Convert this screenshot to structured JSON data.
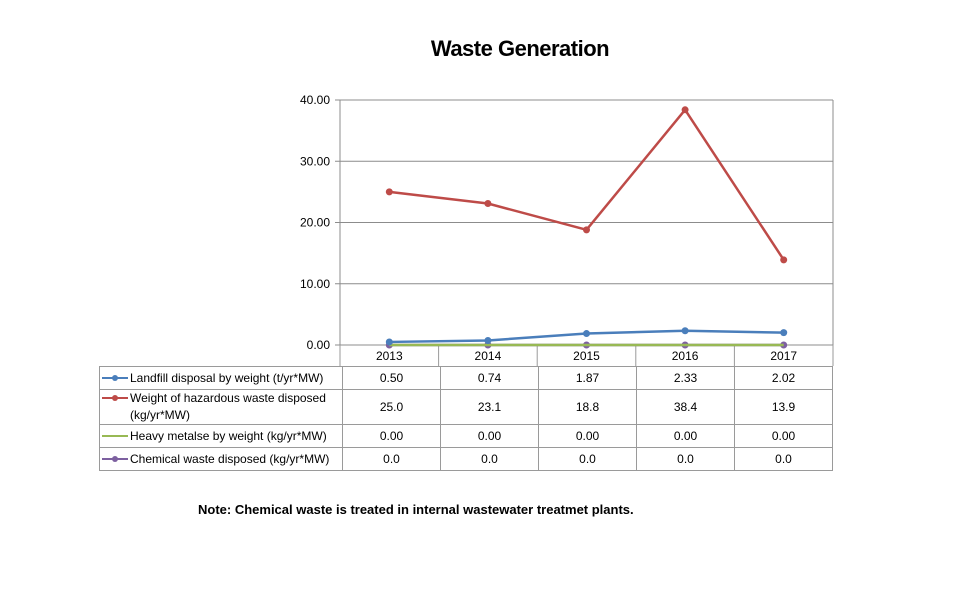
{
  "chart_data": {
    "type": "line",
    "title": "Waste Generation",
    "categories": [
      "2013",
      "2014",
      "2015",
      "2016",
      "2017"
    ],
    "ylim": [
      0,
      40
    ],
    "yticks": [
      "0.00",
      "10.00",
      "20.00",
      "30.00",
      "40.00"
    ],
    "grid": true,
    "legend": "data table below plot",
    "series": [
      {
        "name": "Landfill disposal by weight (t/yr*MW)",
        "values": [
          0.5,
          0.74,
          1.87,
          2.33,
          2.02
        ],
        "labels": [
          "0.50",
          "0.74",
          "1.87",
          "2.33",
          "2.02"
        ],
        "color": "#4a7ebb",
        "marker": true
      },
      {
        "name": "Weight of hazardous waste disposed (kg/yr*MW)",
        "values": [
          25.0,
          23.1,
          18.8,
          38.4,
          13.9
        ],
        "labels": [
          "25.0",
          "23.1",
          "18.8",
          "38.4",
          "13.9"
        ],
        "color": "#be4b48",
        "marker": true
      },
      {
        "name": "Heavy metalse by weight (kg/yr*MW)",
        "values": [
          0.0,
          0.0,
          0.0,
          0.0,
          0.0
        ],
        "labels": [
          "0.00",
          "0.00",
          "0.00",
          "0.00",
          "0.00"
        ],
        "color": "#98b954",
        "marker": false
      },
      {
        "name": "Chemical waste disposed (kg/yr*MW)",
        "values": [
          0.0,
          0.0,
          0.0,
          0.0,
          0.0
        ],
        "labels": [
          "0.0",
          "0.0",
          "0.0",
          "0.0",
          "0.0"
        ],
        "color": "#7d60a0",
        "marker": true
      }
    ]
  },
  "note": "Note: Chemical waste is treated in internal wastewater treatmet  plants."
}
